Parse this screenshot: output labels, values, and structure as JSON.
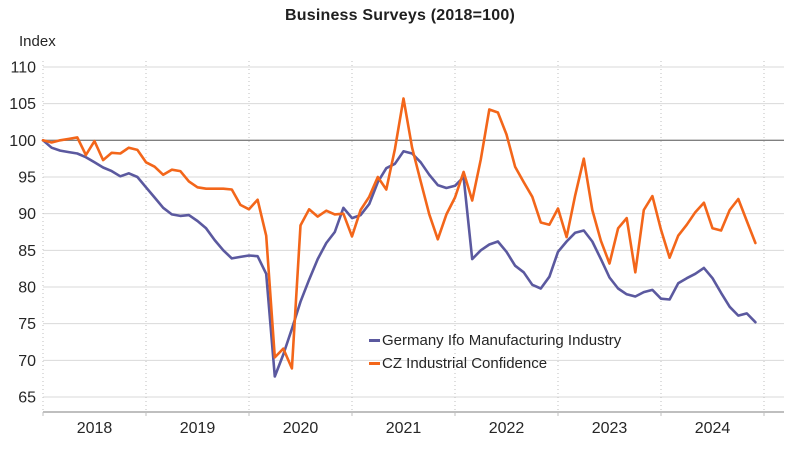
{
  "title": "Business Surveys (2018=100)",
  "y_axis_label": "Index",
  "legend": [
    {
      "label": "Germany Ifo Manufacturing Industry",
      "color": "#5b599f"
    },
    {
      "label": "CZ Industrial Confidence",
      "color": "#f3661a"
    }
  ],
  "colors": {
    "germany_line": "#5b599f",
    "cz_line": "#f3661a",
    "gridline": "#d9d9d9",
    "reference_line_100": "#808080",
    "axis_line": "#bfbfbf",
    "vertical_gridline": "#bfbfbf",
    "tick_text": "#262626",
    "title_text": "#1f1f1f"
  },
  "chart_data": {
    "type": "line",
    "title": "Business Surveys (2018=100)",
    "ylabel": "Index",
    "ylim": [
      65,
      110
    ],
    "y_ticks": [
      65,
      70,
      75,
      80,
      85,
      90,
      95,
      100,
      105,
      110
    ],
    "reference_line": 100,
    "grid": {
      "horizontal": "solid-light",
      "vertical": "dotted-at-year-boundaries",
      "highlight_100": true
    },
    "legend_position": "inside-lower-middle",
    "x_interval": "monthly",
    "x_start": "2018-01",
    "x_end": "2024-12",
    "x_points": 84,
    "x_tick_labels": [
      "2018",
      "2019",
      "2020",
      "2021",
      "2022",
      "2023",
      "2024"
    ],
    "series": [
      {
        "name": "Germany Ifo Manufacturing Industry",
        "color": "#5b599f",
        "values": [
          100.0,
          99.0,
          98.6,
          98.4,
          98.2,
          97.7,
          97.0,
          96.3,
          95.8,
          95.1,
          95.5,
          95.0,
          93.6,
          92.2,
          90.8,
          89.9,
          89.7,
          89.8,
          89.0,
          88.0,
          86.4,
          85.0,
          83.9,
          84.1,
          84.3,
          84.2,
          81.8,
          67.8,
          70.8,
          74.3,
          78.0,
          81.0,
          83.8,
          86.0,
          87.5,
          90.8,
          89.4,
          89.8,
          91.3,
          94.3,
          96.2,
          96.8,
          98.5,
          98.2,
          97.0,
          95.3,
          93.9,
          93.5,
          93.8,
          95.0,
          83.8,
          85.0,
          85.8,
          86.2,
          84.8,
          82.9,
          82.0,
          80.3,
          79.8,
          81.4,
          84.8,
          86.2,
          87.4,
          87.7,
          86.2,
          83.8,
          81.3,
          79.8,
          79.0,
          78.7,
          79.3,
          79.6,
          78.4,
          78.3,
          80.5,
          81.2,
          81.8,
          82.6,
          81.2,
          79.2,
          77.3,
          76.1,
          76.4,
          75.2
        ]
      },
      {
        "name": "CZ Industrial Confidence",
        "color": "#f3661a",
        "values": [
          100.0,
          99.7,
          100.0,
          100.2,
          100.4,
          98.0,
          99.9,
          97.3,
          98.3,
          98.2,
          99.0,
          98.7,
          97.0,
          96.4,
          95.3,
          96.0,
          95.8,
          94.4,
          93.6,
          93.4,
          93.4,
          93.4,
          93.3,
          91.2,
          90.6,
          91.9,
          87.0,
          70.4,
          71.6,
          68.9,
          88.4,
          90.6,
          89.6,
          90.4,
          89.9,
          90.0,
          86.9,
          90.5,
          92.3,
          95.0,
          93.3,
          98.8,
          105.7,
          99.0,
          94.4,
          89.9,
          86.5,
          89.9,
          92.2,
          95.7,
          91.8,
          97.4,
          104.2,
          103.8,
          100.8,
          96.4,
          94.3,
          92.3,
          88.8,
          88.5,
          90.7,
          86.8,
          92.5,
          97.5,
          90.5,
          86.3,
          83.2,
          88.0,
          89.4,
          82.0,
          90.5,
          92.4,
          87.8,
          84.0,
          87.0,
          88.5,
          90.2,
          91.5,
          88.0,
          87.7,
          90.5,
          92.0,
          89.0,
          86.0
        ]
      }
    ]
  }
}
